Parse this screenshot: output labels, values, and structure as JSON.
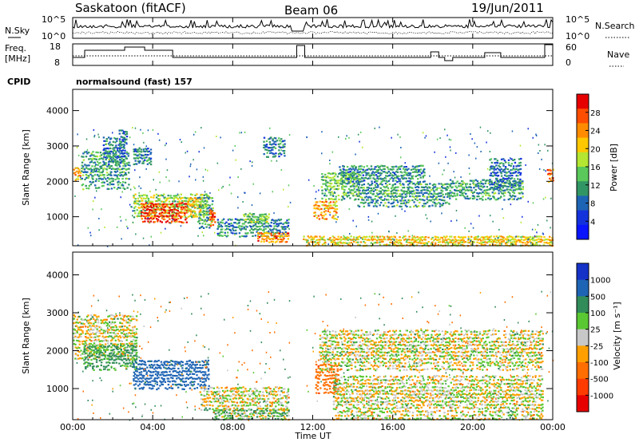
{
  "header": {
    "radar": "Saskatoon (fitACF)",
    "beam": "Beam 06",
    "date": "19/Jun/2011"
  },
  "panels": {
    "nsky": {
      "label": "N.Sky",
      "ticks": [
        "10^5",
        "10^0"
      ],
      "right_label": "N.Search",
      "right_ticks": [
        "10^5",
        "10^0"
      ]
    },
    "freq": {
      "label_top": "Freq.",
      "label_unit": "[MHz]",
      "ticks": [
        "18",
        "8"
      ],
      "right_label": "Nave",
      "right_ticks": [
        "60",
        "0"
      ]
    },
    "cpid": {
      "label": "CPID",
      "text": "normalsound (fast) 157"
    }
  },
  "chart_data": [
    {
      "type": "heatmap",
      "name": "power",
      "ylabel": "Slant Range [km]",
      "xlabel": "Time UT",
      "yticks": [
        1000,
        2000,
        3000,
        4000
      ],
      "ylim": [
        180,
        4600
      ],
      "colorbar": {
        "label": "Power [dB]",
        "ticks": [
          "28",
          "24",
          "20",
          "16",
          "12",
          "8",
          "4"
        ],
        "colors": [
          "#e60000",
          "#ff4d00",
          "#ff8c00",
          "#ffc800",
          "#b4e632",
          "#5ac85a",
          "#329664",
          "#1e64b4",
          "#1432dc",
          "#0a14ff"
        ]
      },
      "regions": [
        {
          "t0": 0.0,
          "t1": 0.4,
          "r0": 2050,
          "r1": 2450,
          "db": 22
        },
        {
          "t0": 0.4,
          "t1": 2.8,
          "r0": 1800,
          "r1": 2900,
          "db": 11
        },
        {
          "t0": 1.5,
          "t1": 2.6,
          "r0": 2500,
          "r1": 3300,
          "db": 8
        },
        {
          "t0": 2.3,
          "t1": 2.7,
          "r0": 3000,
          "r1": 3500,
          "db": 7
        },
        {
          "t0": 3.0,
          "t1": 3.9,
          "r0": 2500,
          "r1": 3000,
          "db": 9
        },
        {
          "t0": 3.0,
          "t1": 6.7,
          "r0": 1000,
          "r1": 1700,
          "db": 16
        },
        {
          "t0": 3.4,
          "t1": 5.7,
          "r0": 850,
          "r1": 1450,
          "db": 27
        },
        {
          "t0": 5.7,
          "t1": 6.4,
          "r0": 1050,
          "r1": 1600,
          "db": 20
        },
        {
          "t0": 6.2,
          "t1": 7.0,
          "r0": 700,
          "r1": 1700,
          "db": 12
        },
        {
          "t0": 6.8,
          "t1": 7.1,
          "r0": 750,
          "r1": 1250,
          "db": 26
        },
        {
          "t0": 7.2,
          "t1": 10.8,
          "r0": 450,
          "r1": 1000,
          "db": 10
        },
        {
          "t0": 8.5,
          "t1": 9.8,
          "r0": 850,
          "r1": 1150,
          "db": 15
        },
        {
          "t0": 9.2,
          "t1": 10.8,
          "r0": 300,
          "r1": 600,
          "db": 23
        },
        {
          "t0": 9.5,
          "t1": 10.6,
          "r0": 2700,
          "r1": 3300,
          "db": 8
        },
        {
          "t0": 12.0,
          "t1": 13.2,
          "r0": 950,
          "r1": 1500,
          "db": 21
        },
        {
          "t0": 12.4,
          "t1": 14.3,
          "r0": 1500,
          "r1": 2300,
          "db": 13
        },
        {
          "t0": 13.3,
          "t1": 17.6,
          "r0": 2000,
          "r1": 2500,
          "db": 10
        },
        {
          "t0": 14.2,
          "t1": 18.8,
          "r0": 1300,
          "r1": 2000,
          "db": 11
        },
        {
          "t0": 18.8,
          "t1": 22.5,
          "r0": 1500,
          "r1": 2100,
          "db": 11
        },
        {
          "t0": 20.8,
          "t1": 22.4,
          "r0": 1800,
          "r1": 2700,
          "db": 8
        },
        {
          "t0": 11.5,
          "t1": 24.0,
          "r0": 200,
          "r1": 500,
          "db": 19
        },
        {
          "t0": 23.7,
          "t1": 24.0,
          "r0": 2000,
          "r1": 2400,
          "db": 24
        }
      ]
    },
    {
      "type": "heatmap",
      "name": "velocity",
      "ylabel": "Slant Range [km]",
      "xlabel": "Time UT",
      "yticks": [
        1000,
        2000,
        3000,
        4000
      ],
      "ylim": [
        180,
        4600
      ],
      "colorbar": {
        "label": "Velocity [m s⁻¹]",
        "ticks": [
          "1000",
          "500",
          "100",
          "25",
          "-25",
          "-100",
          "-500",
          "-1000"
        ],
        "colors": [
          "#1432c8",
          "#1e64b4",
          "#328c5a",
          "#5ac832",
          "#c8c8c8",
          "#ffa000",
          "#ff6e00",
          "#ff3c00",
          "#e60000"
        ]
      },
      "regions": [
        {
          "t0": 0.0,
          "t1": 3.2,
          "r0": 1800,
          "r1": 3000,
          "v": 0
        },
        {
          "t0": 0.5,
          "t1": 3.2,
          "r0": 1500,
          "r1": 2200,
          "v": 150
        },
        {
          "t0": 3.0,
          "t1": 6.8,
          "r0": 1000,
          "r1": 1800,
          "v": 600
        },
        {
          "t0": 6.3,
          "t1": 10.8,
          "r0": 450,
          "r1": 1100,
          "v": 0
        },
        {
          "t0": 7.0,
          "t1": 10.8,
          "r0": 200,
          "r1": 500,
          "v": 60
        },
        {
          "t0": 12.1,
          "t1": 13.3,
          "r0": 900,
          "r1": 1700,
          "v": -400
        },
        {
          "t0": 12.3,
          "t1": 23.5,
          "r0": 1500,
          "r1": 2600,
          "v": 0
        },
        {
          "t0": 13.0,
          "t1": 23.5,
          "r0": 200,
          "r1": 1400,
          "v": 0
        }
      ]
    }
  ],
  "xaxis": {
    "label": "Time UT",
    "ticks": [
      "00:00",
      "04:00",
      "08:00",
      "12:00",
      "16:00",
      "20:00",
      "00:00"
    ]
  }
}
